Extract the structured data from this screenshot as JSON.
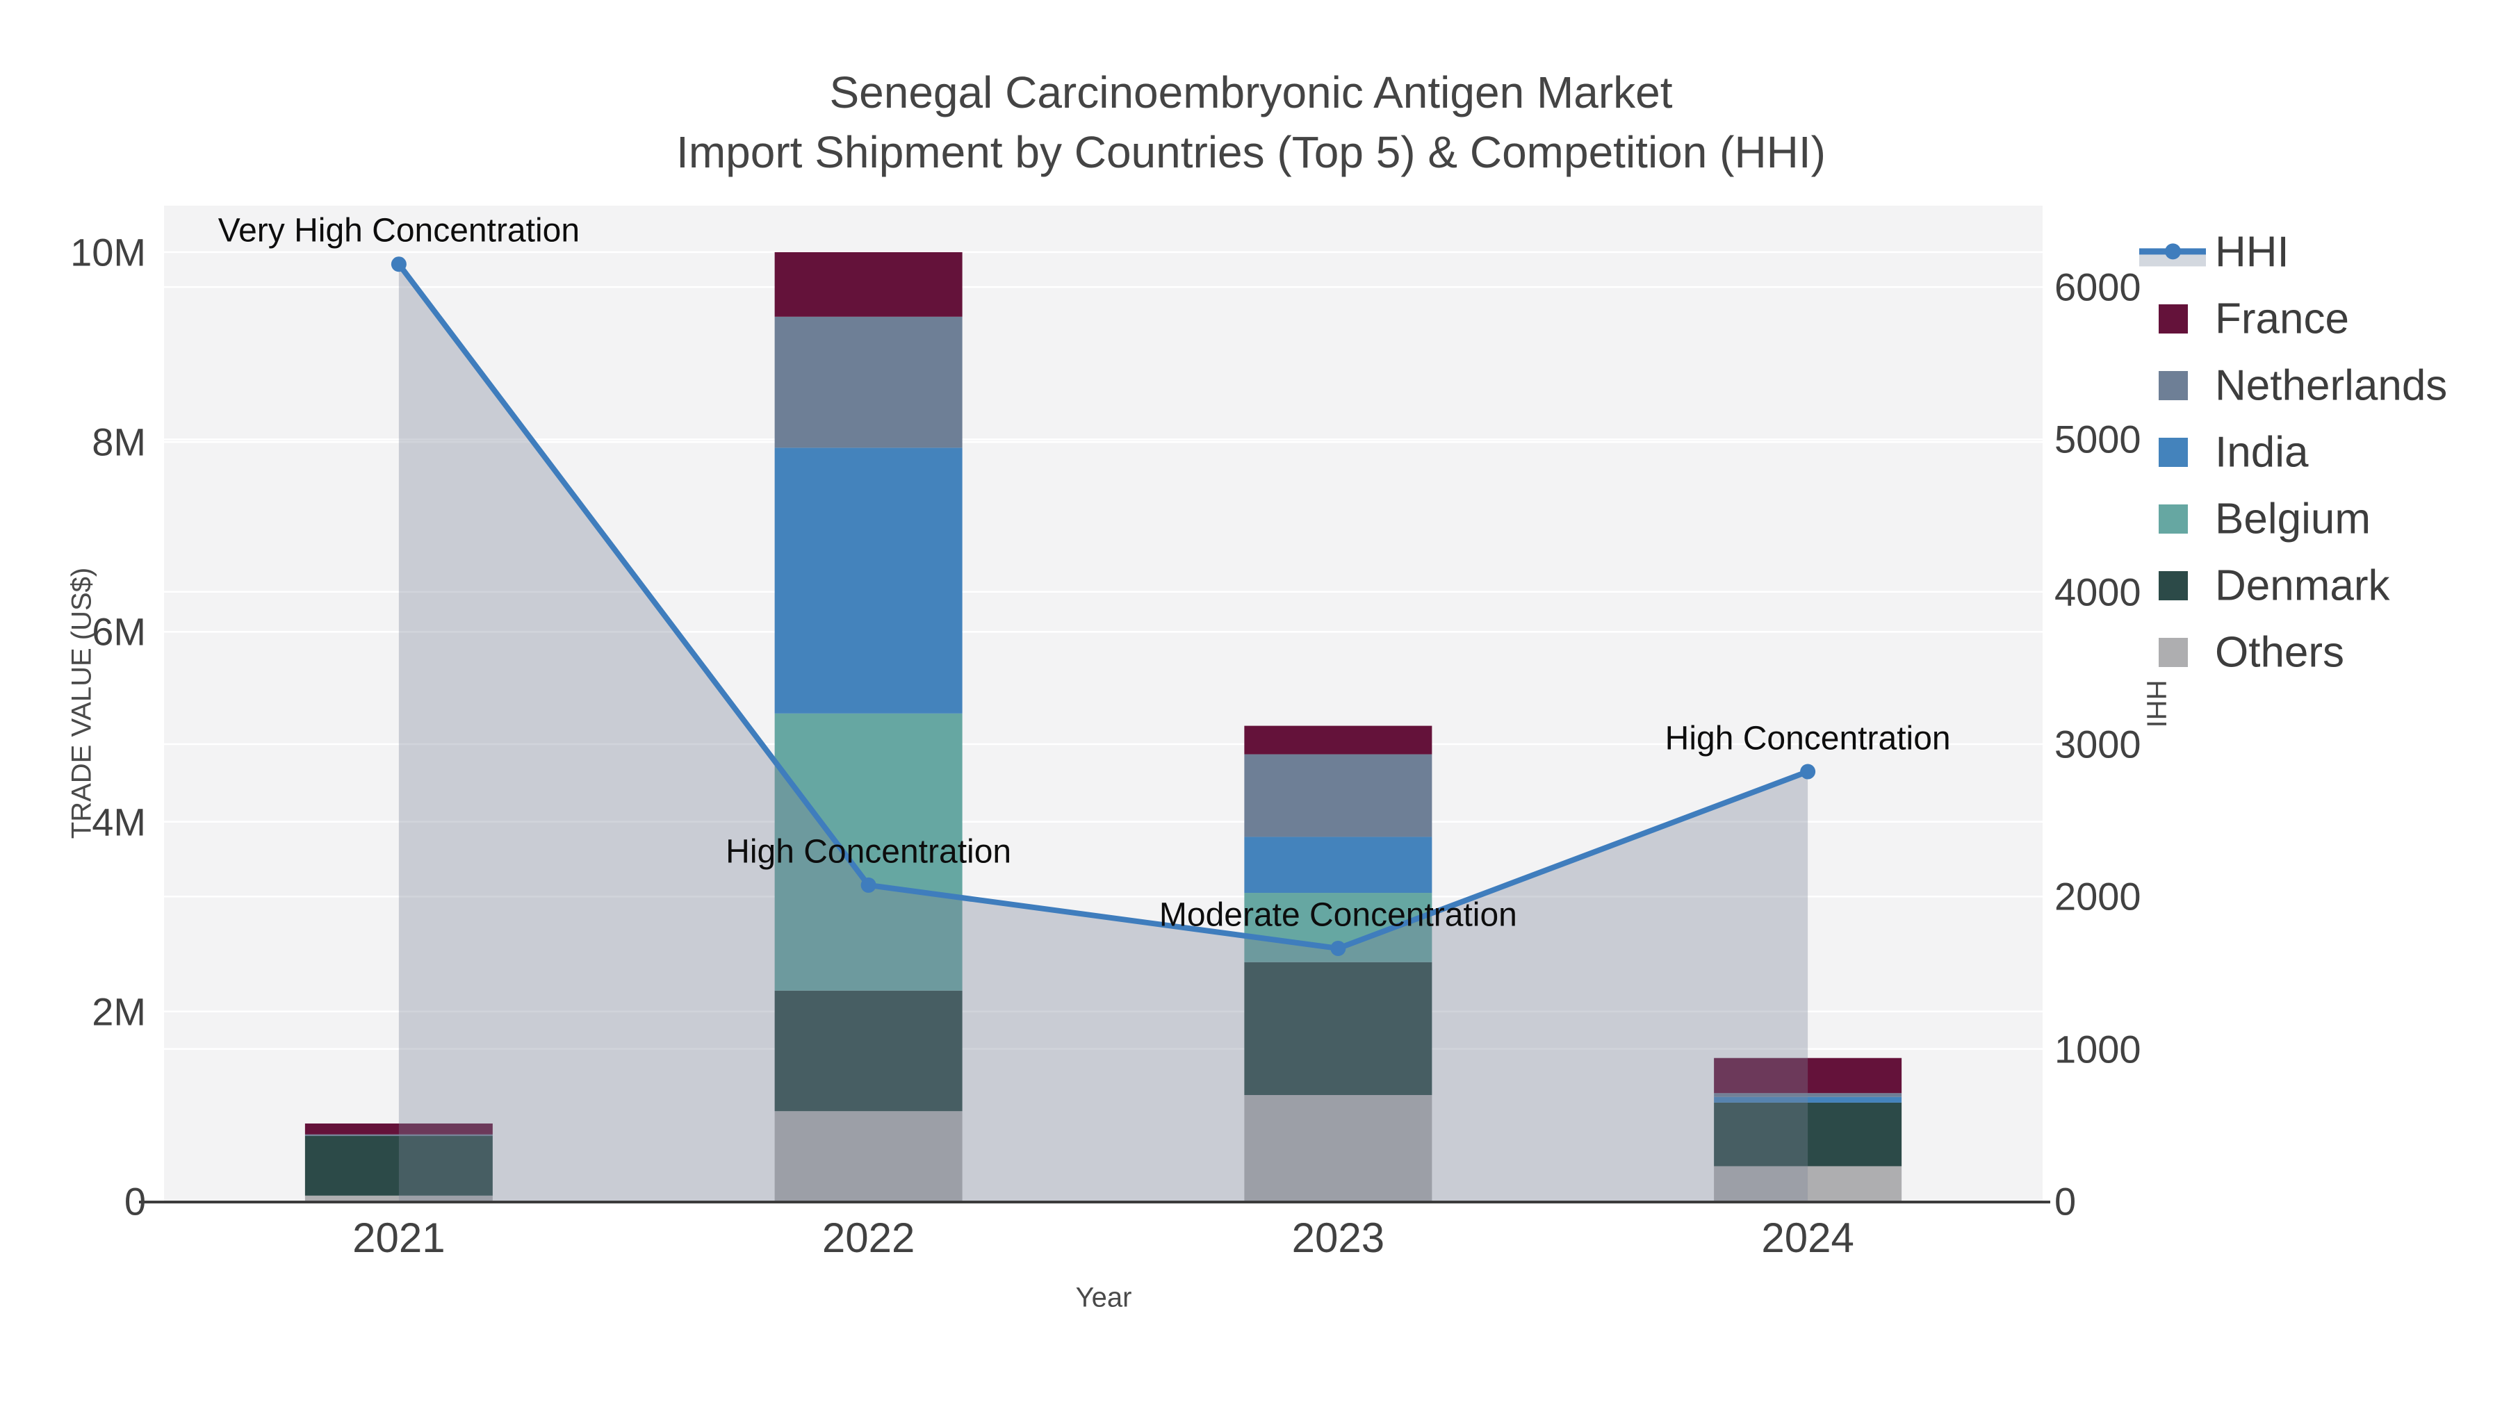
{
  "chart": {
    "title_line1": "Senegal Carcinoembryonic Antigen Market",
    "title_line2": "Import Shipment by Countries (Top 5) & Competition (HHI)",
    "x_axis_title": "Year",
    "y_left_title": "TRADE VALUE (US$)",
    "y_right_title": "HHI"
  },
  "chart_data": {
    "type": "bar",
    "subtype": "stacked bars (left axis, trade value US$) with HHI line + shaded area (right axis)",
    "categories": [
      "2021",
      "2022",
      "2023",
      "2024"
    ],
    "series": [
      {
        "name": "Others",
        "color": "#aeaeb0",
        "values": [
          60000,
          950000,
          1120000,
          370000
        ]
      },
      {
        "name": "Denmark",
        "color": "#2c4a48",
        "values": [
          630000,
          1270000,
          1400000,
          670000
        ]
      },
      {
        "name": "Belgium",
        "color": "#66a7a2",
        "values": [
          0,
          2920000,
          730000,
          0
        ]
      },
      {
        "name": "India",
        "color": "#4483bc",
        "values": [
          0,
          2800000,
          590000,
          60000
        ]
      },
      {
        "name": "Netherlands",
        "color": "#6e7f96",
        "values": [
          15000,
          1380000,
          870000,
          40000
        ]
      },
      {
        "name": "France",
        "color": "#64123a",
        "values": [
          115000,
          680000,
          300000,
          370000
        ]
      }
    ],
    "line_series": {
      "name": "HHI",
      "color": "#3f7dbd",
      "area_fill": "rgba(122,132,152,0.35)",
      "values": [
        6150,
        2075,
        1660,
        2820
      ]
    },
    "annotations": [
      {
        "text": "Very High Concentration",
        "category_index": 0
      },
      {
        "text": "High Concentration",
        "category_index": 1
      },
      {
        "text": "Moderate Concentration",
        "category_index": 2
      },
      {
        "text": "High Concentration",
        "category_index": 3
      }
    ],
    "left_axis": {
      "title": "TRADE VALUE (US$)",
      "ticks": [
        {
          "v": 0,
          "label": "0"
        },
        {
          "v": 2000000,
          "label": "2M"
        },
        {
          "v": 4000000,
          "label": "4M"
        },
        {
          "v": 6000000,
          "label": "6M"
        },
        {
          "v": 8000000,
          "label": "8M"
        },
        {
          "v": 10000000,
          "label": "10M"
        }
      ],
      "range": [
        0,
        10490000
      ]
    },
    "right_axis": {
      "title": "HHI",
      "ticks": [
        {
          "v": 0,
          "label": "0"
        },
        {
          "v": 1000,
          "label": "1000"
        },
        {
          "v": 2000,
          "label": "2000"
        },
        {
          "v": 3000,
          "label": "3000"
        },
        {
          "v": 4000,
          "label": "4000"
        },
        {
          "v": 5000,
          "label": "5000"
        },
        {
          "v": 6000,
          "label": "6000"
        }
      ],
      "range": [
        0,
        6534
      ]
    },
    "legend": {
      "position": "right",
      "items": [
        {
          "label": "HHI",
          "type": "line"
        },
        {
          "label": "France",
          "type": "swatch",
          "color": "#64123a"
        },
        {
          "label": "Netherlands",
          "type": "swatch",
          "color": "#6e7f96"
        },
        {
          "label": "India",
          "type": "swatch",
          "color": "#4483bc"
        },
        {
          "label": "Belgium",
          "type": "swatch",
          "color": "#66a7a2"
        },
        {
          "label": "Denmark",
          "type": "swatch",
          "color": "#2c4a48"
        },
        {
          "label": "Others",
          "type": "swatch",
          "color": "#aeaeb0"
        }
      ]
    },
    "plot_background": "#f3f3f4",
    "gridline_color": "#ffffff",
    "grid": true
  }
}
